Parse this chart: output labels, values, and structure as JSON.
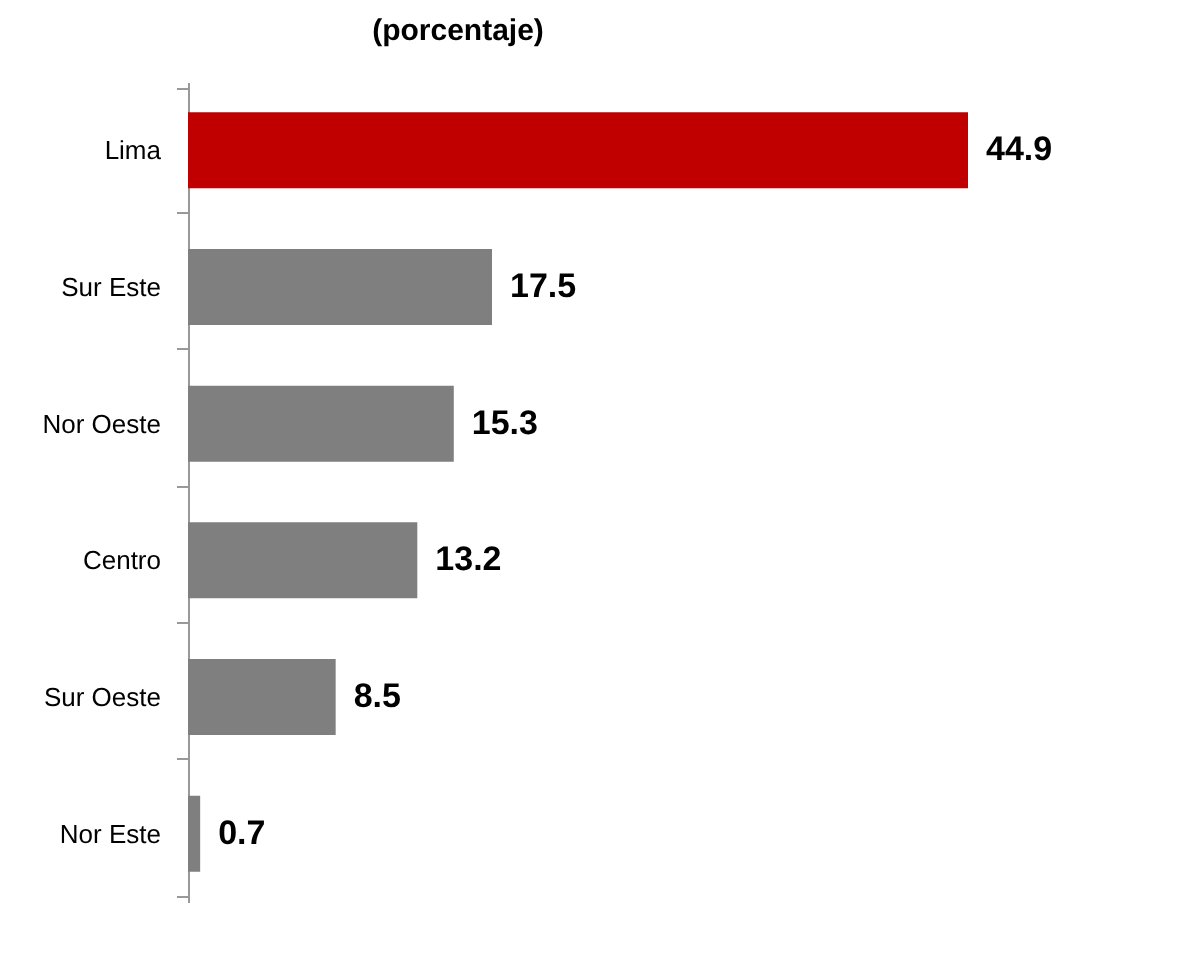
{
  "chart_data": {
    "type": "bar",
    "orientation": "horizontal",
    "title": "(porcentaje)",
    "categories": [
      "Lima",
      "Sur Este",
      "Nor Oeste",
      "Centro",
      "Sur Oeste",
      "Nor Este"
    ],
    "values": [
      44.9,
      17.5,
      15.3,
      13.2,
      8.5,
      0.7
    ],
    "colors": [
      "#c00000",
      "#7f7f7f",
      "#7f7f7f",
      "#7f7f7f",
      "#7f7f7f",
      "#7f7f7f"
    ],
    "data_labels": true,
    "grid": false,
    "legend": false
  }
}
